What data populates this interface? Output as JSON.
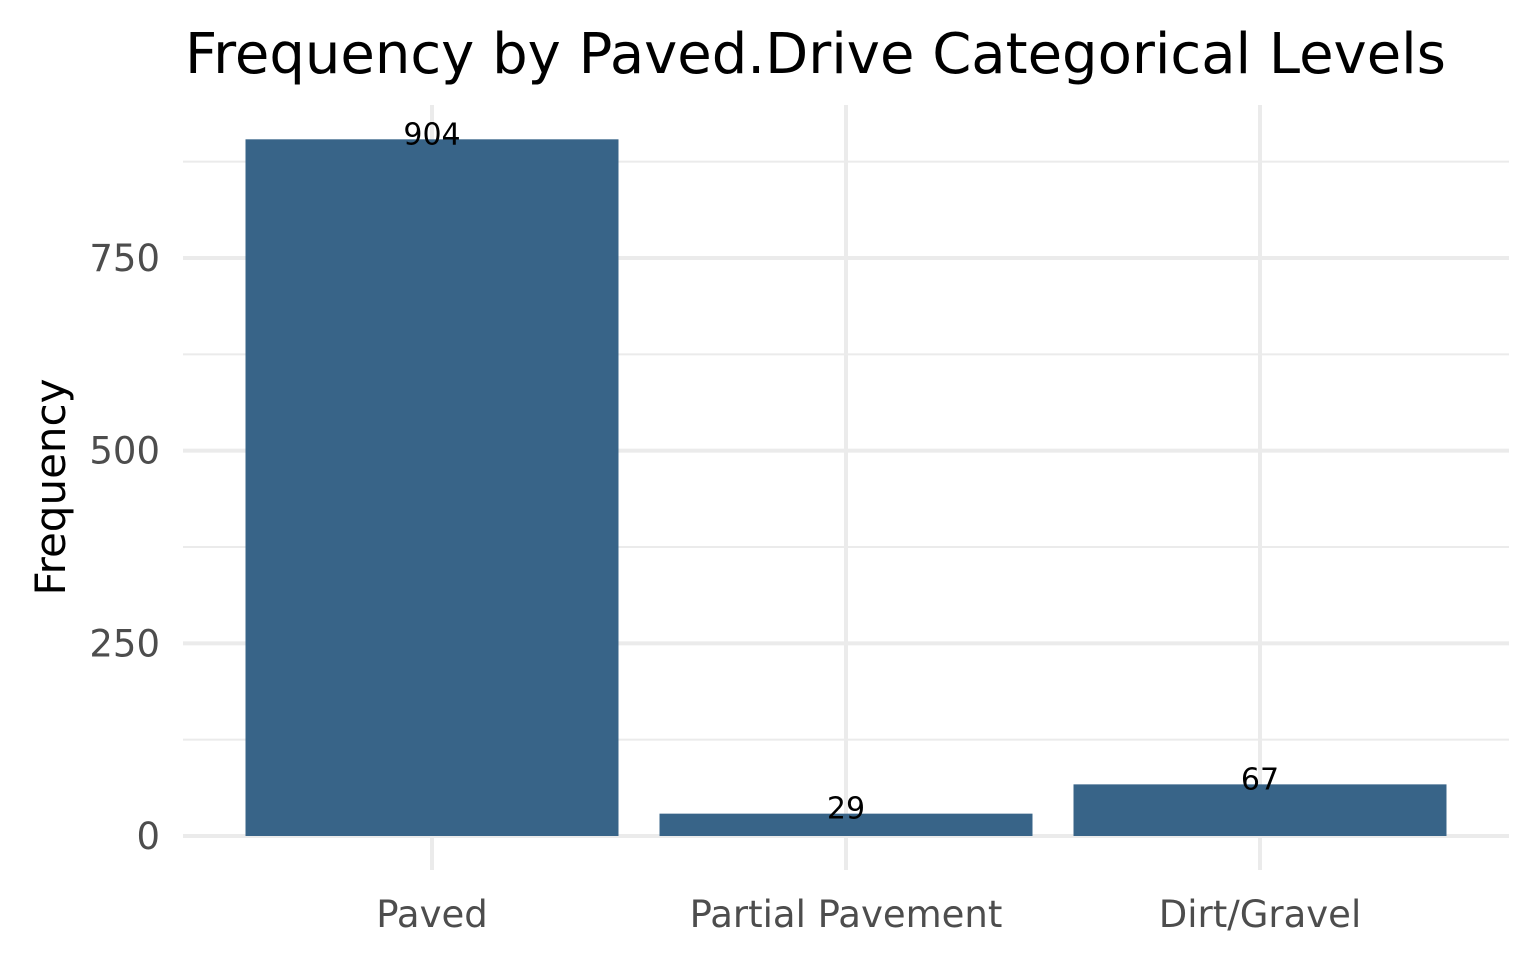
{
  "chart_data": {
    "type": "bar",
    "title": "Frequency by Paved.Drive Categorical Levels",
    "xlabel": "",
    "ylabel": "Frequency",
    "categories": [
      "Paved",
      "Partial Pavement",
      "Dirt/Gravel"
    ],
    "values": [
      904,
      29,
      67
    ],
    "data_labels": [
      "904",
      "29",
      "67"
    ],
    "y_ticks": [
      0,
      250,
      500,
      750
    ],
    "y_tick_labels": [
      "0",
      "250",
      "500",
      "750"
    ],
    "ylim": [
      -5,
      950
    ],
    "grid": true,
    "legend": "none",
    "bar_color": "#386488"
  }
}
